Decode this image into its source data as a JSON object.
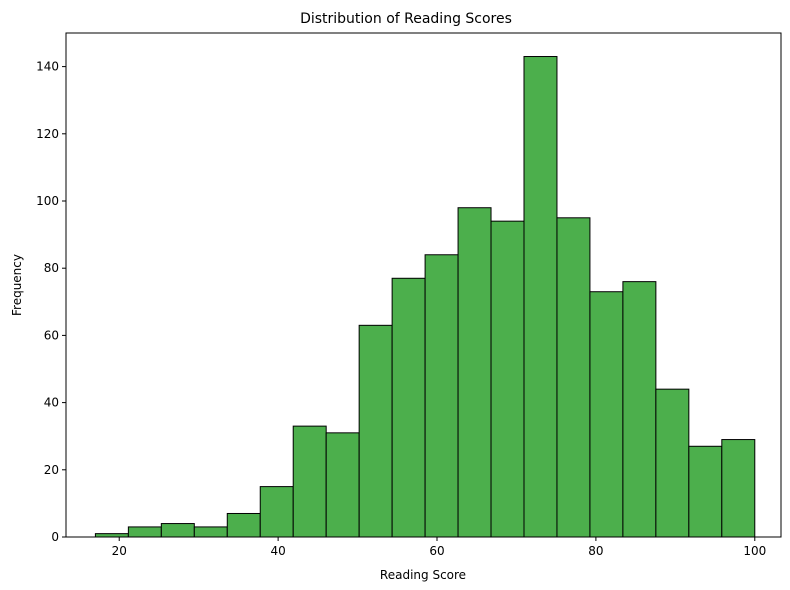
{
  "chart_data": {
    "type": "bar",
    "subtype": "histogram",
    "title": "Distribution of Reading Scores",
    "xlabel": "Reading Score",
    "ylabel": "Frequency",
    "xlim": [
      13.3,
      103.3
    ],
    "ylim": [
      0,
      150
    ],
    "xticks": [
      20,
      40,
      60,
      80,
      100
    ],
    "yticks": [
      0,
      20,
      40,
      60,
      80,
      100,
      120,
      140
    ],
    "bin_edges": [
      17.0,
      21.15,
      25.3,
      29.45,
      33.6,
      37.75,
      41.9,
      46.05,
      50.2,
      54.35,
      58.5,
      62.65,
      66.8,
      70.95,
      75.1,
      79.25,
      83.4,
      87.55,
      91.7,
      95.85,
      100.0
    ],
    "values": [
      1,
      3,
      4,
      3,
      7,
      15,
      33,
      31,
      63,
      77,
      84,
      98,
      94,
      143,
      95,
      73,
      76,
      44,
      27,
      29
    ],
    "bar_color": "#4caf4c",
    "edge_color": "#000000",
    "grid": false,
    "legend": "none"
  }
}
